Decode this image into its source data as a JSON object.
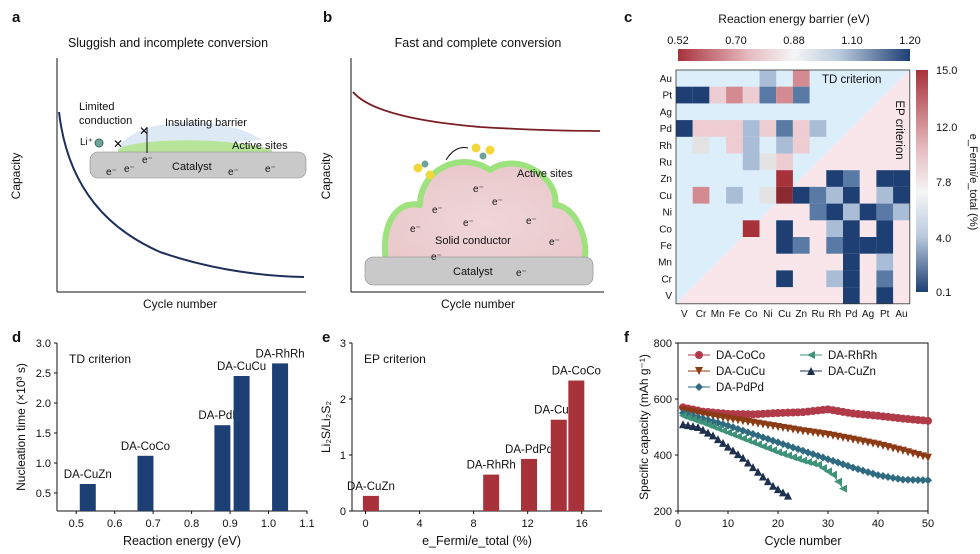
{
  "panel_letters": {
    "a": "a",
    "b": "b",
    "c": "c",
    "d": "d",
    "e": "e",
    "f": "f"
  },
  "panel_a": {
    "title": "Sluggish and incomplete conversion",
    "ylabel": "Capacity",
    "xlabel": "Cycle number",
    "labels": {
      "limited_1": "Limited",
      "limited_2": "conduction",
      "li": "Li⁺",
      "barrier": "Insulating barrier",
      "active": "Active sites",
      "catalyst": "Catalyst",
      "electron": "e⁻"
    }
  },
  "panel_b": {
    "title": "Fast and complete conversion",
    "ylabel": "Capacity",
    "xlabel": "Cycle number",
    "labels": {
      "active": "Active sites",
      "solid": "Solid conductor",
      "catalyst": "Catalyst",
      "electron": "e⁻"
    }
  },
  "panel_c": {
    "colorbar_title": "Reaction energy barrier (eV)",
    "colorbar_ticks": [
      "0.52",
      "0.70",
      "0.88",
      "1.10",
      "1.20"
    ],
    "right_ticks": [
      "15.0",
      "12.0",
      "7.8",
      "4.0",
      "0.1"
    ],
    "right_label": "e_Fermi/e_total (%)",
    "td_label": "TD criterion",
    "ep_label": "EP criterion",
    "rows": [
      "Au",
      "Pt",
      "Ag",
      "Pd",
      "Rh",
      "Ru",
      "Zn",
      "Cu",
      "Ni",
      "Co",
      "Fe",
      "Mn",
      "Cr",
      "V"
    ],
    "cols": [
      "V",
      "Cr",
      "Mn",
      "Fe",
      "Co",
      "Ni",
      "Cu",
      "Zn",
      "Ru",
      "Rh",
      "Pd",
      "Ag",
      "Pt",
      "Au"
    ],
    "colors": {
      "red": "#a8323a",
      "blue": "#1d3f73",
      "bg_blue": "#dbeefa",
      "bg_pink": "#f8e6ea"
    }
  },
  "panel_d": {
    "legend": "TD criterion",
    "ylabel": "Nucleation time (×10³ s)",
    "xlabel": "Reaction energy (eV)",
    "color": "#1d3f73",
    "chart_data": {
      "type": "bar",
      "bars": [
        {
          "label": "DA-CuZn",
          "x": 0.53,
          "value": 0.65
        },
        {
          "label": "DA-CoCo",
          "x": 0.68,
          "value": 1.12
        },
        {
          "label": "DA-PdPd",
          "x": 0.88,
          "value": 1.63
        },
        {
          "label": "DA-CuCu",
          "x": 0.93,
          "value": 2.45
        },
        {
          "label": "DA-RhRh",
          "x": 1.03,
          "value": 2.66
        }
      ],
      "xlim": [
        0.45,
        1.1
      ],
      "ylim": [
        0.2,
        3.0
      ],
      "xticks": [
        "0.5",
        "0.6",
        "0.7",
        "0.8",
        "0.9",
        "1.0",
        "1.1"
      ],
      "yticks": [
        "0.5",
        "1.0",
        "1.5",
        "2.0",
        "2.5",
        "3.0"
      ]
    }
  },
  "panel_e": {
    "legend": "EP criterion",
    "ylabel": "Li₂S/Li₂S₂",
    "xlabel": "e_Fermi/e_total (%)",
    "color": "#a8323a",
    "chart_data": {
      "type": "bar",
      "bars": [
        {
          "label": "DA-CuZn",
          "x": 0.4,
          "value": 0.27
        },
        {
          "label": "DA-RhRh",
          "x": 9.3,
          "value": 0.65
        },
        {
          "label": "DA-PdPd",
          "x": 12.1,
          "value": 0.93
        },
        {
          "label": "DA-CuCu",
          "x": 14.3,
          "value": 1.63
        },
        {
          "label": "DA-CoCo",
          "x": 15.6,
          "value": 2.33
        }
      ],
      "xlim": [
        -1,
        17.5
      ],
      "ylim": [
        0,
        3
      ],
      "xticks": [
        "0",
        "4",
        "8",
        "12",
        "16"
      ],
      "yticks": [
        "0",
        "1",
        "2",
        "3"
      ]
    }
  },
  "panel_f": {
    "ylabel": "Specific capacity (mAh g⁻¹)",
    "xlabel": "Cycle number",
    "chart_data": {
      "type": "line",
      "xlim": [
        0,
        50
      ],
      "ylim": [
        200,
        800
      ],
      "xticks": [
        "0",
        "10",
        "20",
        "30",
        "40",
        "50"
      ],
      "yticks": [
        "200",
        "400",
        "600",
        "800"
      ],
      "series": [
        {
          "name": "DA-CoCo",
          "color": "#b03a48",
          "marker": "circle",
          "points": [
            [
              1,
              570
            ],
            [
              5,
              555
            ],
            [
              10,
              547
            ],
            [
              15,
              545
            ],
            [
              20,
              550
            ],
            [
              25,
              553
            ],
            [
              30,
              563
            ],
            [
              35,
              548
            ],
            [
              40,
              540
            ],
            [
              45,
              530
            ],
            [
              50,
              522
            ]
          ]
        },
        {
          "name": "DA-CuCu",
          "color": "#8b3a14",
          "marker": "tri-down",
          "points": [
            [
              1,
              560
            ],
            [
              5,
              545
            ],
            [
              10,
              530
            ],
            [
              15,
              515
            ],
            [
              20,
              500
            ],
            [
              25,
              485
            ],
            [
              30,
              472
            ],
            [
              35,
              455
            ],
            [
              40,
              437
            ],
            [
              45,
              415
            ],
            [
              50,
              390
            ]
          ]
        },
        {
          "name": "DA-PdPd",
          "color": "#2e6b80",
          "marker": "diamond",
          "points": [
            [
              1,
              550
            ],
            [
              5,
              530
            ],
            [
              10,
              505
            ],
            [
              15,
              475
            ],
            [
              20,
              445
            ],
            [
              25,
              415
            ],
            [
              30,
              385
            ],
            [
              35,
              355
            ],
            [
              40,
              328
            ],
            [
              45,
              312
            ],
            [
              50,
              310
            ]
          ]
        },
        {
          "name": "DA-RhRh",
          "color": "#3e9278",
          "marker": "tri-left",
          "points": [
            [
              1,
              540
            ],
            [
              5,
              515
            ],
            [
              10,
              480
            ],
            [
              15,
              445
            ],
            [
              20,
              410
            ],
            [
              25,
              380
            ],
            [
              28,
              365
            ],
            [
              31,
              330
            ],
            [
              33,
              280
            ]
          ]
        },
        {
          "name": "DA-CuZn",
          "color": "#1d3050",
          "marker": "tri-up",
          "points": [
            [
              1,
              510
            ],
            [
              4,
              500
            ],
            [
              7,
              470
            ],
            [
              10,
              430
            ],
            [
              13,
              390
            ],
            [
              16,
              340
            ],
            [
              19,
              290
            ],
            [
              22,
              255
            ]
          ]
        }
      ]
    }
  }
}
